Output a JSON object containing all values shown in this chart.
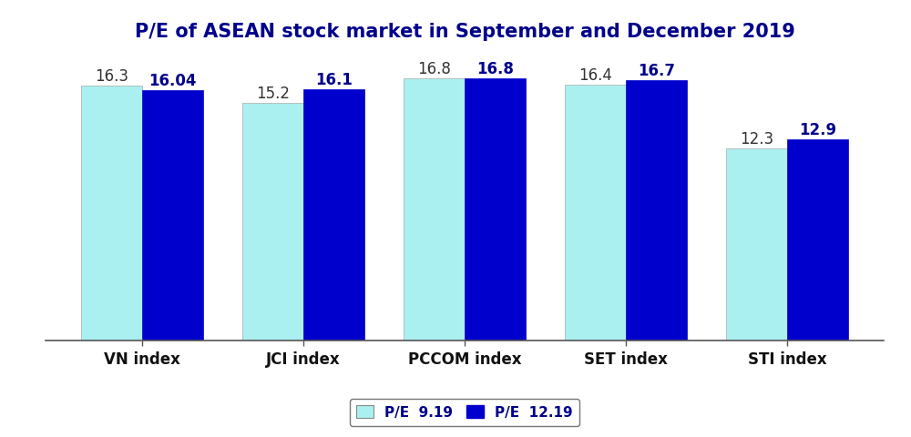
{
  "title": "P/E of ASEAN stock market in September and December 2019",
  "categories": [
    "VN index",
    "JCI index",
    "PCCOM index",
    "SET index",
    "STI index"
  ],
  "series1_label": "P/E  9.19",
  "series2_label": "P/E  12.19",
  "series1_values": [
    16.3,
    15.2,
    16.8,
    16.4,
    12.3
  ],
  "series2_values": [
    16.04,
    16.1,
    16.8,
    16.7,
    12.9
  ],
  "series1_color": "#aaf0f0",
  "series2_color": "#0000cd",
  "bar_width": 0.38,
  "ylim": [
    0,
    18.5
  ],
  "title_fontsize": 15,
  "label_fontsize": 11,
  "tick_fontsize": 12,
  "value_fontsize": 12,
  "background_color": "#ffffff",
  "annotation_color_s1": "#333333",
  "annotation_color_s2": "#00008B"
}
